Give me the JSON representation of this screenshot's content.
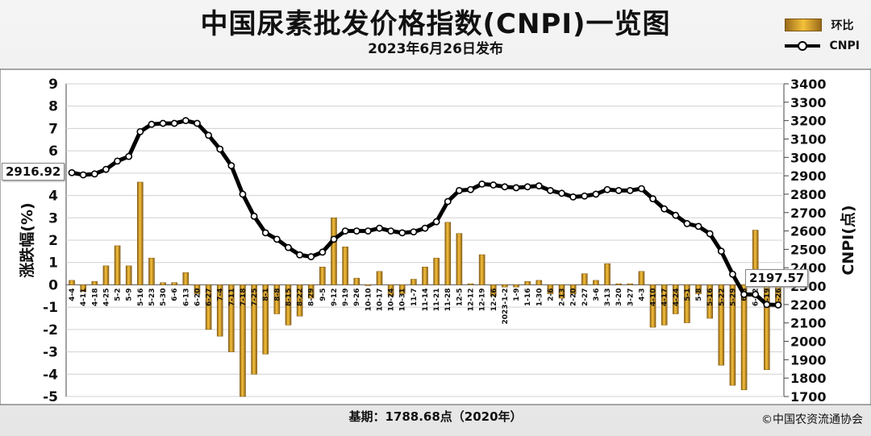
{
  "header": {
    "title": "中国尿素批发价格指数(CNPI)一览图",
    "subtitle": "2023年6月26日发布"
  },
  "legend": {
    "bar_label": "环比",
    "line_label": "CNPI"
  },
  "footer": {
    "base": "基期：1788.68点（2020年）",
    "copyright": "©中国农资流通协会"
  },
  "callouts": {
    "start": "2916.92",
    "end": "2197.57"
  },
  "colors": {
    "bar_light": "#f6c23b",
    "bar_dark": "#8c5f16",
    "line": "#000000",
    "marker_fill": "#ffffff"
  },
  "chart_data": {
    "type": "bar+line",
    "left_axis": {
      "label": "涨跌幅(%)",
      "ticks": [
        "9",
        "8",
        "7",
        "6",
        "5",
        "4",
        "3",
        "2",
        "1",
        "0",
        "-1",
        "-2",
        "-3",
        "-4",
        "-5"
      ],
      "range": [
        -5,
        9
      ]
    },
    "right_axis": {
      "label": "CNPI(点)",
      "ticks": [
        "3400",
        "3300",
        "3200",
        "3100",
        "3000",
        "2900",
        "2800",
        "2700",
        "2600",
        "2500",
        "2400",
        "2300",
        "2200",
        "2100",
        "2000",
        "1900",
        "1800",
        "1700"
      ],
      "range": [
        1700,
        3400
      ]
    },
    "grid": true,
    "categories": [
      "4-4",
      "4-11",
      "4-18",
      "4-25",
      "5-2",
      "5-9",
      "5-16",
      "5-23",
      "5-30",
      "6-6",
      "6-13",
      "6-20",
      "6-27",
      "7-4",
      "7-11",
      "7-18",
      "7-25",
      "8-1",
      "8-8",
      "8-15",
      "8-22",
      "8-29",
      "9-5",
      "9-12",
      "9-19",
      "9-26",
      "10-10",
      "10-17",
      "10-24",
      "10-31",
      "11-7",
      "11-14",
      "11-21",
      "11-28",
      "12-5",
      "12-12",
      "12-19",
      "12-26",
      "2023-1-2",
      "1-9",
      "1-16",
      "1-30",
      "2-6",
      "2-13",
      "2-20",
      "2-27",
      "3-6",
      "3-13",
      "3-20",
      "3-27",
      "4-3",
      "4-10",
      "4-17",
      "4-24",
      "5-1",
      "5-8",
      "5-16",
      "5-22",
      "5-29",
      "6-5",
      "6-12",
      "6-19",
      "6-26"
    ],
    "series": [
      {
        "name": "环比",
        "kind": "bar",
        "values": [
          0.2,
          -0.3,
          0.15,
          0.85,
          1.75,
          0.85,
          4.6,
          1.2,
          0.1,
          0.1,
          0.55,
          -0.4,
          -2.0,
          -2.3,
          -3.0,
          -5.0,
          -4.0,
          -3.1,
          -1.3,
          -1.8,
          -1.4,
          -0.6,
          0.8,
          3.0,
          1.7,
          0.3,
          0.0,
          0.6,
          -0.5,
          -0.4,
          0.25,
          0.8,
          1.2,
          2.8,
          2.3,
          0.05,
          1.35,
          -0.5,
          -0.1,
          -0.1,
          0.15,
          0.2,
          -0.4,
          -0.6,
          -0.4,
          0.5,
          0.2,
          0.95,
          0.05,
          0.05,
          0.6,
          -1.9,
          -1.8,
          -1.3,
          -1.7,
          -0.4,
          -1.5,
          -3.6,
          -4.5,
          -4.7,
          2.45,
          -3.8,
          -1.0
        ]
      },
      {
        "name": "CNPI",
        "kind": "line",
        "values": [
          2916.92,
          2905,
          2910,
          2935,
          2980,
          3005,
          3140,
          3180,
          3185,
          3185,
          3200,
          3185,
          3120,
          3045,
          2955,
          2800,
          2680,
          2590,
          2555,
          2510,
          2470,
          2460,
          2485,
          2555,
          2600,
          2600,
          2600,
          2615,
          2600,
          2590,
          2595,
          2615,
          2650,
          2760,
          2820,
          2825,
          2855,
          2850,
          2840,
          2835,
          2840,
          2845,
          2820,
          2805,
          2785,
          2790,
          2800,
          2825,
          2820,
          2820,
          2830,
          2775,
          2720,
          2685,
          2640,
          2625,
          2585,
          2490,
          2365,
          2255,
          2255,
          2200,
          2197.57
        ]
      }
    ]
  }
}
